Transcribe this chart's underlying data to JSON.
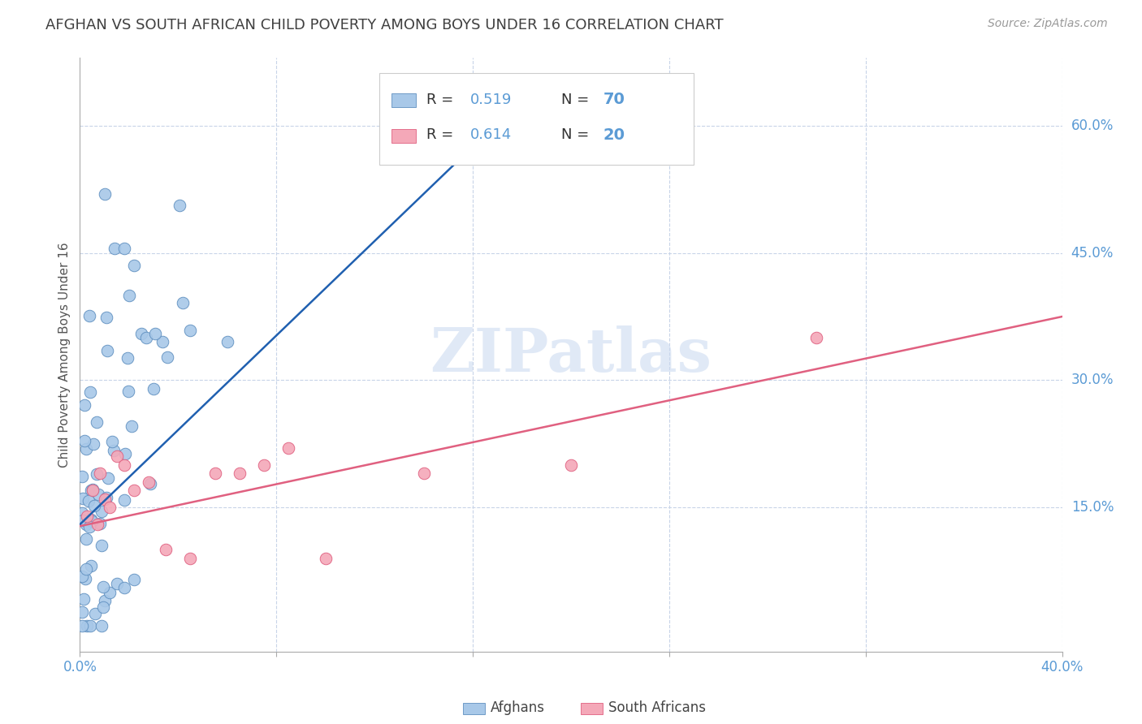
{
  "title": "AFGHAN VS SOUTH AFRICAN CHILD POVERTY AMONG BOYS UNDER 16 CORRELATION CHART",
  "source": "Source: ZipAtlas.com",
  "ylabel": "Child Poverty Among Boys Under 16",
  "xlim": [
    0.0,
    0.4
  ],
  "ylim": [
    -0.02,
    0.68
  ],
  "xtick_positions": [
    0.0,
    0.08,
    0.16,
    0.24,
    0.32,
    0.4
  ],
  "xticklabels": [
    "0.0%",
    "",
    "",
    "",
    "",
    "40.0%"
  ],
  "yticks_right": [
    0.15,
    0.3,
    0.45,
    0.6
  ],
  "ytick_right_labels": [
    "15.0%",
    "30.0%",
    "45.0%",
    "60.0%"
  ],
  "watermark": "ZIPatlas",
  "afghan_color": "#A8C8E8",
  "sa_color": "#F4A8B8",
  "afghan_edge_color": "#6090C0",
  "sa_edge_color": "#E06080",
  "afghan_line_color": "#2060B0",
  "sa_line_color": "#E06080",
  "blue_label_color": "#5B9BD5",
  "title_color": "#404040",
  "grid_color": "#C8D4E8",
  "background_color": "#FFFFFF",
  "blue_trendline_x": [
    0.0,
    0.185
  ],
  "blue_trendline_y": [
    0.13,
    0.645
  ],
  "pink_trendline_x": [
    0.0,
    0.4
  ],
  "pink_trendline_y": [
    0.128,
    0.375
  ]
}
